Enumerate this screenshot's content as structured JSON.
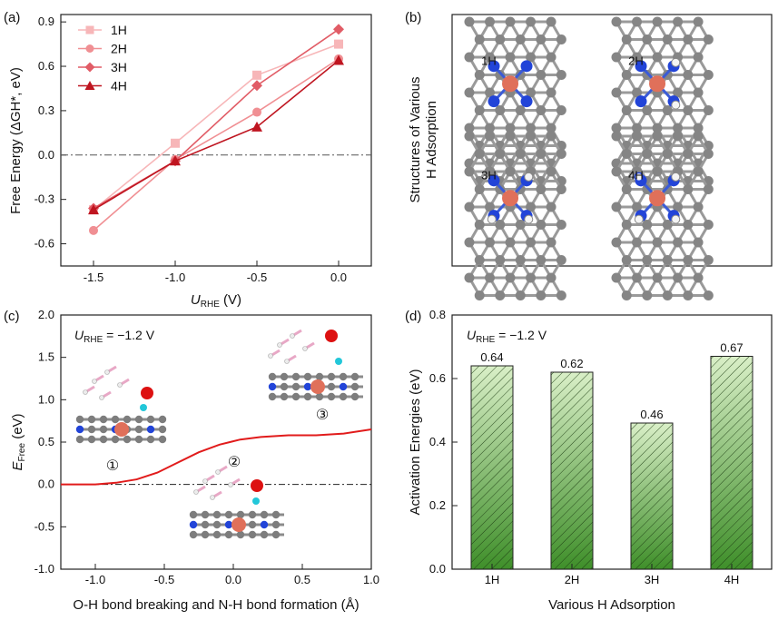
{
  "chart_data": [
    {
      "panel": "(a)",
      "type": "line",
      "xlabel_main": "U",
      "xlabel_sub": "RHE",
      "xlabel_unit": " (V)",
      "ylabel": "Free Energy (ΔGH*, eV)",
      "xlim": [
        -1.7,
        0.2
      ],
      "ylim": [
        -0.75,
        0.95
      ],
      "xticks": [
        -1.5,
        -1.0,
        -0.5,
        0.0
      ],
      "xtick_labels": [
        "-1.5",
        "-1.0",
        "-0.5",
        "0.0"
      ],
      "yticks": [
        -0.6,
        -0.3,
        0.0,
        0.3,
        0.6,
        0.9
      ],
      "ytick_labels": [
        "-0.6",
        "-0.3",
        "0.0",
        "0.3",
        "0.6",
        "0.9"
      ],
      "x": [
        -1.5,
        -1.0,
        -0.5,
        0.0
      ],
      "series": [
        {
          "name": "1H",
          "values": [
            -0.37,
            0.08,
            0.54,
            0.75
          ],
          "marker": "square",
          "color": "#f7b6b8"
        },
        {
          "name": "2H",
          "values": [
            -0.51,
            -0.03,
            0.29,
            0.65
          ],
          "marker": "circle",
          "color": "#f08f93"
        },
        {
          "name": "3H",
          "values": [
            -0.36,
            -0.04,
            0.47,
            0.85
          ],
          "marker": "diamond",
          "color": "#e15c66"
        },
        {
          "name": "4H",
          "values": [
            -0.37,
            -0.04,
            0.19,
            0.64
          ],
          "marker": "triangle",
          "color": "#bf1520"
        }
      ],
      "reference_line": 0.0
    },
    {
      "panel": "(b)",
      "type": "image",
      "title_line1": "Structures of Various",
      "title_line2": "H Adsorption",
      "labels": [
        "1H",
        "2H",
        "3H",
        "4H"
      ]
    },
    {
      "panel": "(c)",
      "type": "line",
      "annotation_main": "U",
      "annotation_sub": "RHE",
      "annotation_rest": " = −1.2 V",
      "ylabel_main": "E",
      "ylabel_sub": "Free",
      "ylabel_unit": " (eV)",
      "xlabel": "O-H bond breaking and  N-H bond formation (Å)",
      "xlim": [
        -1.25,
        1.0
      ],
      "ylim": [
        -1.0,
        2.0
      ],
      "xticks": [
        -1.0,
        -0.5,
        0.0,
        0.5,
        1.0
      ],
      "xtick_labels": [
        "-1.0",
        "-0.5",
        "0.0",
        "0.5",
        "1.0"
      ],
      "yticks": [
        -1.0,
        -0.5,
        0.0,
        0.5,
        1.0,
        1.5,
        2.0
      ],
      "ytick_labels": [
        "-1.0",
        "-0.5",
        "0.0",
        "0.5",
        "1.0",
        "1.5",
        "2.0"
      ],
      "curve": {
        "x": [
          -1.25,
          -1.0,
          -0.85,
          -0.7,
          -0.55,
          -0.4,
          -0.25,
          -0.1,
          0.05,
          0.2,
          0.4,
          0.6,
          0.8,
          1.0
        ],
        "y": [
          0.0,
          0.0,
          0.02,
          0.06,
          0.14,
          0.26,
          0.38,
          0.47,
          0.53,
          0.56,
          0.58,
          0.58,
          0.6,
          0.65
        ],
        "color": "#e11b1b"
      },
      "reference_line": 0.0,
      "state_labels": [
        "①",
        "②",
        "③"
      ]
    },
    {
      "panel": "(d)",
      "type": "bar",
      "annotation_main": "U",
      "annotation_sub": "RHE",
      "annotation_rest": " = −1.2 V",
      "categories": [
        "1H",
        "2H",
        "3H",
        "4H"
      ],
      "values": [
        0.64,
        0.62,
        0.46,
        0.67
      ],
      "value_labels": [
        "0.64",
        "0.62",
        "0.46",
        "0.67"
      ],
      "xlabel": "Various H Adsorption",
      "ylabel": "Activation Energies (eV)",
      "ylim": [
        0.0,
        0.8
      ],
      "yticks": [
        0.0,
        0.2,
        0.4,
        0.6,
        0.8
      ],
      "ytick_labels": [
        "0.0",
        "0.2",
        "0.4",
        "0.6",
        "0.8"
      ],
      "bar_color_top": "#d9efc7",
      "bar_color_bottom": "#3f8f2a"
    }
  ]
}
